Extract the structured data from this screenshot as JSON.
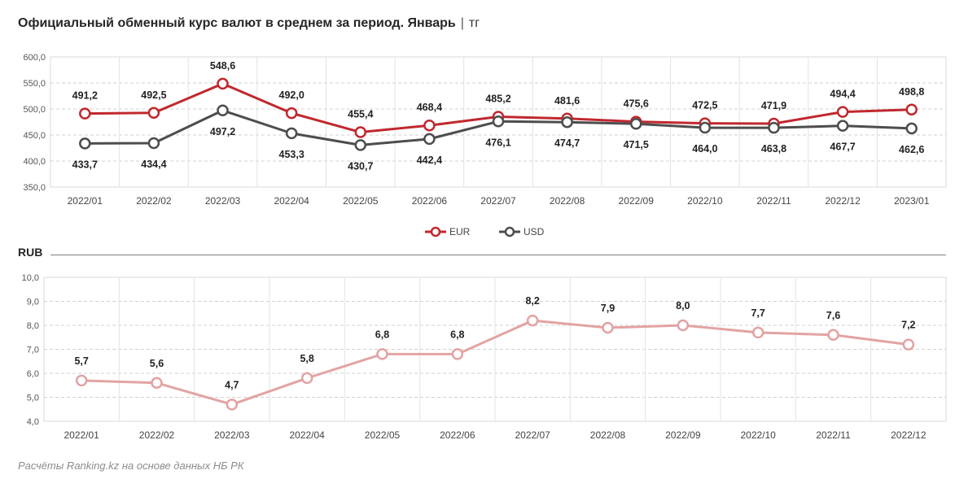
{
  "header": {
    "title": "Официальный обменный курс валют в среднем за период. Январь",
    "unit": "тг"
  },
  "chart_data": [
    {
      "type": "line",
      "categories": [
        "2022/01",
        "2022/02",
        "2022/03",
        "2022/04",
        "2022/05",
        "2022/06",
        "2022/07",
        "2022/08",
        "2022/09",
        "2022/10",
        "2022/11",
        "2022/12",
        "2023/01"
      ],
      "ylim": [
        350,
        600
      ],
      "yticks": [
        "350,0",
        "400,0",
        "450,0",
        "500,0",
        "550,0",
        "600,0"
      ],
      "grid": true,
      "legend": "bottom",
      "series": [
        {
          "name": "EUR",
          "color": "#c0282e",
          "values": [
            491.2,
            492.5,
            548.6,
            492.0,
            455.4,
            468.4,
            485.2,
            481.6,
            475.6,
            472.5,
            471.9,
            494.4,
            498.8
          ],
          "labels": [
            "491,2",
            "492,5",
            "548,6",
            "492,0",
            "455,4",
            "468,4",
            "485,2",
            "481,6",
            "475,6",
            "472,5",
            "471,9",
            "494,4",
            "498,8"
          ]
        },
        {
          "name": "USD",
          "color": "#4d4d4d",
          "values": [
            433.7,
            434.4,
            497.2,
            453.3,
            430.7,
            442.4,
            476.1,
            474.7,
            471.5,
            464.0,
            463.8,
            467.7,
            462.6
          ],
          "labels": [
            "433,7",
            "434,4",
            "497,2",
            "453,3",
            "430,7",
            "442,4",
            "476,1",
            "474,7",
            "471,5",
            "464,0",
            "463,8",
            "467,7",
            "462,6"
          ]
        }
      ]
    },
    {
      "type": "line",
      "title": "RUB",
      "categories": [
        "2022/01",
        "2022/02",
        "2022/03",
        "2022/04",
        "2022/05",
        "2022/06",
        "2022/07",
        "2022/08",
        "2022/09",
        "2022/10",
        "2022/11",
        "2022/12"
      ],
      "ylim": [
        4,
        10
      ],
      "yticks": [
        "4,0",
        "5,0",
        "6,0",
        "7,0",
        "8,0",
        "9,0",
        "10,0"
      ],
      "grid": true,
      "series": [
        {
          "color": "#e3a3a3",
          "values": [
            5.7,
            5.6,
            4.7,
            5.8,
            6.8,
            6.8,
            8.2,
            7.9,
            8.0,
            7.7,
            7.6,
            7.2
          ],
          "labels": [
            "5,7",
            "5,6",
            "4,7",
            "5,8",
            "6,8",
            "6,8",
            "8,2",
            "7,9",
            "8,0",
            "7,7",
            "7,6",
            "7,2"
          ]
        }
      ]
    }
  ],
  "footer": {
    "source": "Расчёты Ranking.kz на основе данных НБ РК"
  }
}
